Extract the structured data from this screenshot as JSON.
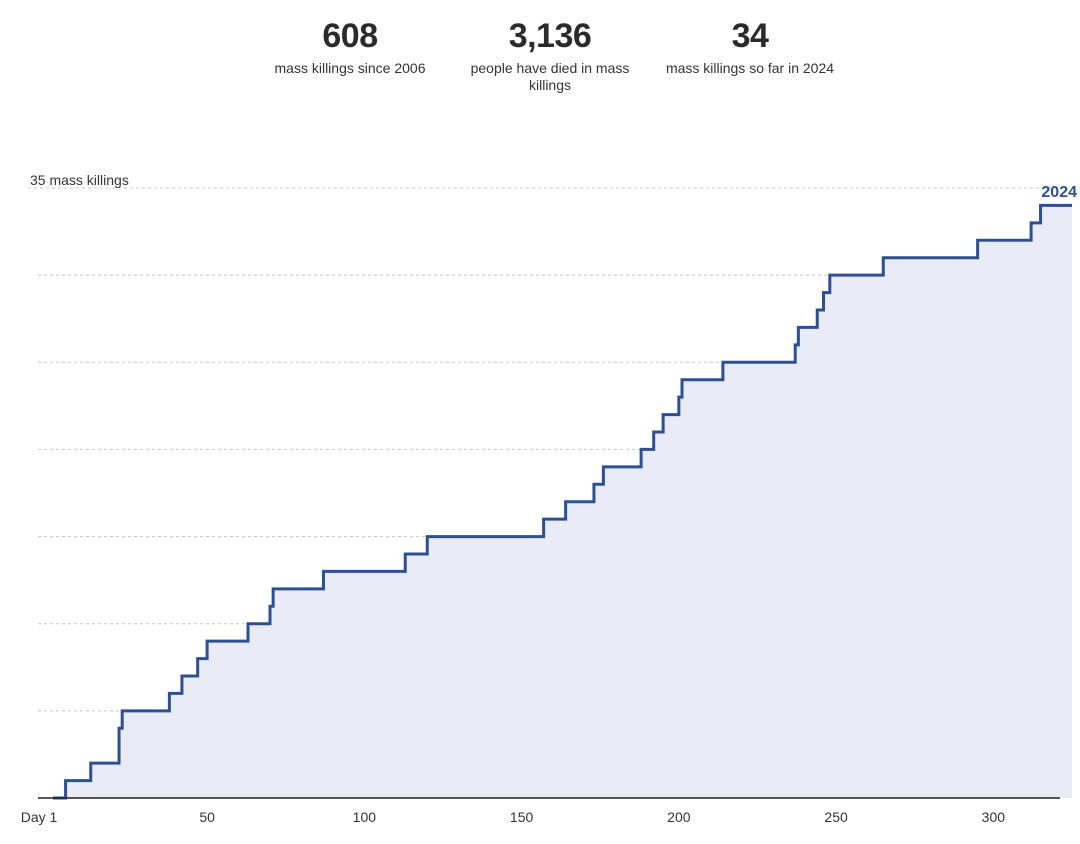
{
  "stats": [
    {
      "value": "608",
      "label": "mass killings since 2006"
    },
    {
      "value": "3,136",
      "label": "people have died in mass killings"
    },
    {
      "value": "34",
      "label": "mass killings so far in 2024"
    }
  ],
  "chart_data": {
    "type": "area",
    "title": "",
    "xlabel": "",
    "ylabel": "",
    "y_max_label": "35 mass killings",
    "series": [
      {
        "name": "2024",
        "step": true,
        "points": [
          [
            1,
            0
          ],
          [
            5,
            1
          ],
          [
            13,
            2
          ],
          [
            22,
            4
          ],
          [
            23,
            5
          ],
          [
            38,
            6
          ],
          [
            42,
            7
          ],
          [
            47,
            8
          ],
          [
            50,
            9
          ],
          [
            63,
            10
          ],
          [
            70,
            11
          ],
          [
            71,
            12
          ],
          [
            87,
            13
          ],
          [
            113,
            14
          ],
          [
            120,
            15
          ],
          [
            157,
            16
          ],
          [
            164,
            17
          ],
          [
            173,
            18
          ],
          [
            176,
            19
          ],
          [
            188,
            20
          ],
          [
            192,
            21
          ],
          [
            195,
            22
          ],
          [
            200,
            23
          ],
          [
            201,
            24
          ],
          [
            214,
            25
          ],
          [
            237,
            26
          ],
          [
            238,
            27
          ],
          [
            244,
            28
          ],
          [
            246,
            29
          ],
          [
            248,
            30
          ],
          [
            265,
            31
          ],
          [
            295,
            32
          ],
          [
            312,
            33
          ],
          [
            315,
            34
          ],
          [
            325,
            34
          ]
        ]
      }
    ],
    "xlim": [
      1,
      325
    ],
    "ylim": [
      0,
      35
    ],
    "x_ticks": [
      {
        "value": 1,
        "label": "Day 1"
      },
      {
        "value": 50,
        "label": "50"
      },
      {
        "value": 100,
        "label": "100"
      },
      {
        "value": 150,
        "label": "150"
      },
      {
        "value": 200,
        "label": "200"
      },
      {
        "value": 250,
        "label": "250"
      },
      {
        "value": 300,
        "label": "300"
      }
    ],
    "y_gridlines": [
      5,
      10,
      15,
      20,
      25,
      30,
      35
    ],
    "grid": true,
    "colors": {
      "line": "#2d4f96",
      "fill": "#e9ecf6",
      "grid": "#c8c8c8",
      "axis": "#222222"
    }
  }
}
